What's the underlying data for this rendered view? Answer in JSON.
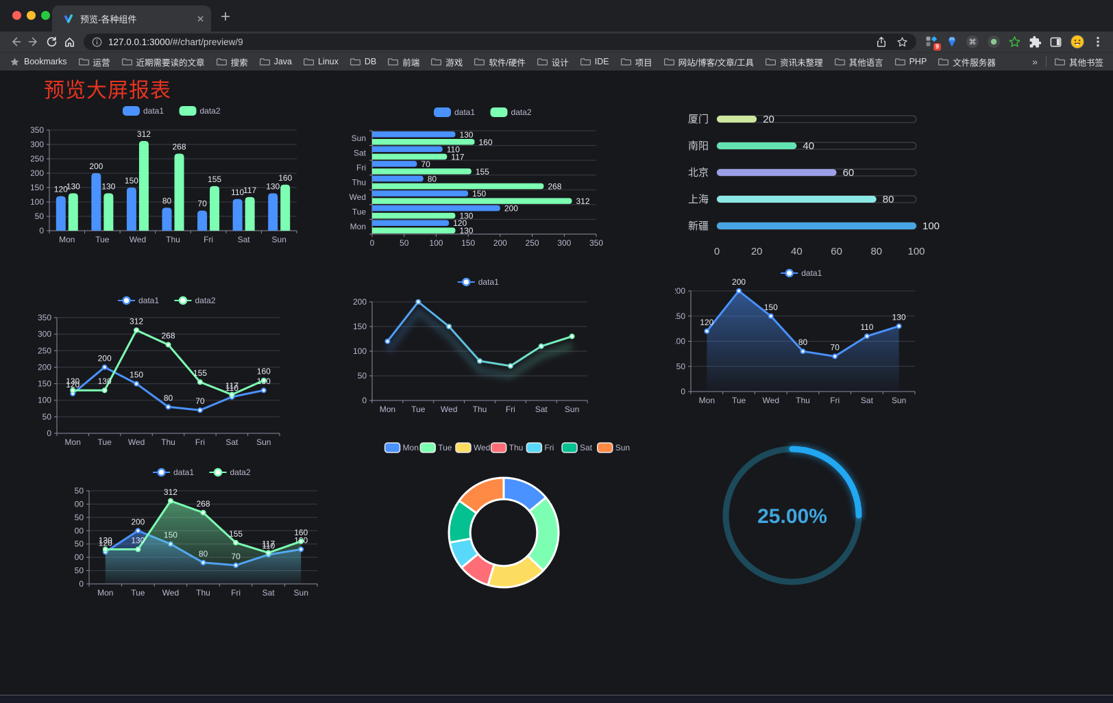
{
  "browser": {
    "tab": {
      "title": "预览-各种组件"
    },
    "url": {
      "host": "127.0.0.1:3000",
      "path": "/#/chart/preview/9"
    },
    "extension_badge": "9",
    "bookmarks_label": "Bookmarks",
    "bookmark_folders": [
      "运营",
      "近期需要读的文章",
      "搜索",
      "Java",
      "Linux",
      "DB",
      "前端",
      "游戏",
      "软件/硬件",
      "设计",
      "IDE",
      "项目",
      "网站/博客/文章/工具",
      "资讯未整理",
      "其他语言",
      "PHP",
      "文件服务器"
    ],
    "overflow_chevron": "»",
    "other_bookmarks": "其他书签",
    "icons": {
      "back": "arrow-left",
      "forward": "arrow-right",
      "reload": "refresh",
      "home": "house",
      "site_info": "info-circle",
      "share": "share-up-arrow",
      "bookmark": "star-outline",
      "extensions": "puzzle-piece",
      "side_panel": "panel-square",
      "profile": "emoji-face",
      "menu": "kebab-dots"
    }
  },
  "page": {
    "title": "预览大屏报表",
    "title_color": "#e8341f",
    "background": "#17181c"
  },
  "chart_data": [
    {
      "id": "bar-grouped",
      "type": "bar",
      "categories": [
        "Mon",
        "Tue",
        "Wed",
        "Thu",
        "Fri",
        "Sat",
        "Sun"
      ],
      "series": [
        {
          "name": "data1",
          "color": "#4992ff",
          "values": [
            120,
            200,
            150,
            80,
            70,
            110,
            130
          ]
        },
        {
          "name": "data2",
          "color": "#7cffb2",
          "values": [
            130,
            130,
            312,
            268,
            155,
            117,
            160
          ]
        }
      ],
      "ylim": [
        0,
        350
      ],
      "ytick": 50,
      "labels": true,
      "legend": "top",
      "grid": true
    },
    {
      "id": "bar-horizontal",
      "type": "hbar",
      "categories": [
        "Mon",
        "Tue",
        "Wed",
        "Thu",
        "Fri",
        "Sat",
        "Sun"
      ],
      "series": [
        {
          "name": "data1",
          "color": "#4992ff",
          "values": [
            120,
            200,
            150,
            80,
            70,
            110,
            130
          ]
        },
        {
          "name": "data2",
          "color": "#7cffb2",
          "values": [
            130,
            130,
            312,
            268,
            155,
            117,
            160
          ]
        }
      ],
      "xlim": [
        0,
        350
      ],
      "xtick": 50,
      "labels": true,
      "legend": "top",
      "grid": true
    },
    {
      "id": "progress",
      "type": "progress",
      "rows": [
        {
          "label": "厦门",
          "value": 20,
          "color": "#cde79f"
        },
        {
          "label": "南阳",
          "value": 40,
          "color": "#63e2b2"
        },
        {
          "label": "北京",
          "value": 60,
          "color": "#9c9fe6"
        },
        {
          "label": "上海",
          "value": 80,
          "color": "#8ce8e4"
        },
        {
          "label": "新疆",
          "value": 100,
          "color": "#47a5e5"
        }
      ],
      "xlim": [
        0,
        100
      ],
      "xticks": [
        0,
        20,
        40,
        60,
        80,
        100
      ]
    },
    {
      "id": "line-dual",
      "type": "line",
      "categories": [
        "Mon",
        "Tue",
        "Wed",
        "Thu",
        "Fri",
        "Sat",
        "Sun"
      ],
      "series": [
        {
          "name": "data1",
          "color": "#4992ff",
          "values": [
            120,
            200,
            150,
            80,
            70,
            110,
            130
          ]
        },
        {
          "name": "data2",
          "color": "#7cffb2",
          "values": [
            130,
            130,
            312,
            268,
            155,
            117,
            160
          ]
        }
      ],
      "ylim": [
        0,
        350
      ],
      "ytick": 50,
      "labels": true,
      "legend": "top",
      "grid": true
    },
    {
      "id": "line-gradient",
      "type": "line",
      "categories": [
        "Mon",
        "Tue",
        "Wed",
        "Thu",
        "Fri",
        "Sat",
        "Sun"
      ],
      "series": [
        {
          "name": "data1",
          "gradient": [
            "#4992ff",
            "#7cffb2"
          ],
          "values": [
            120,
            200,
            150,
            80,
            70,
            110,
            130
          ]
        }
      ],
      "ylim": [
        0,
        200
      ],
      "ytick": 50,
      "labels": false,
      "legend": "top",
      "glow": true,
      "grid": true
    },
    {
      "id": "line-area",
      "type": "line",
      "categories": [
        "Mon",
        "Tue",
        "Wed",
        "Thu",
        "Fri",
        "Sat",
        "Sun"
      ],
      "series": [
        {
          "name": "data1",
          "color": "#4992ff",
          "area": true,
          "values": [
            120,
            200,
            150,
            80,
            70,
            110,
            130
          ]
        }
      ],
      "ylim": [
        0,
        200
      ],
      "ytick": 50,
      "labels": true,
      "legend": "top",
      "grid": true
    },
    {
      "id": "line-area-dual",
      "type": "line",
      "categories": [
        "Mon",
        "Tue",
        "Wed",
        "Thu",
        "Fri",
        "Sat",
        "Sun"
      ],
      "series": [
        {
          "name": "data1",
          "color": "#4992ff",
          "area": true,
          "values": [
            120,
            200,
            150,
            80,
            70,
            110,
            130
          ]
        },
        {
          "name": "data2",
          "color": "#7cffb2",
          "area": true,
          "values": [
            130,
            130,
            312,
            268,
            155,
            117,
            160
          ]
        }
      ],
      "ylim": [
        0,
        350
      ],
      "ytick": 50,
      "labels": true,
      "legend": "top",
      "grid": true
    },
    {
      "id": "donut",
      "type": "pie",
      "inner_ratio": 0.61,
      "legend": "top",
      "items": [
        {
          "label": "Mon",
          "value": 120,
          "color": "#4992ff"
        },
        {
          "label": "Tue",
          "value": 200,
          "color": "#7cffb2"
        },
        {
          "label": "Wed",
          "value": 150,
          "color": "#fddd60"
        },
        {
          "label": "Thu",
          "value": 80,
          "color": "#ff6e76"
        },
        {
          "label": "Fri",
          "value": 70,
          "color": "#58d9f9"
        },
        {
          "label": "Sat",
          "value": 110,
          "color": "#05c091"
        },
        {
          "label": "Sun",
          "value": 130,
          "color": "#ff8a45"
        }
      ]
    },
    {
      "id": "gauge",
      "type": "gauge",
      "value": 25,
      "display": "25.00%",
      "color": "#22a7f2",
      "track_color": "#1c4a5a",
      "text_color": "#3ea6e0"
    }
  ]
}
